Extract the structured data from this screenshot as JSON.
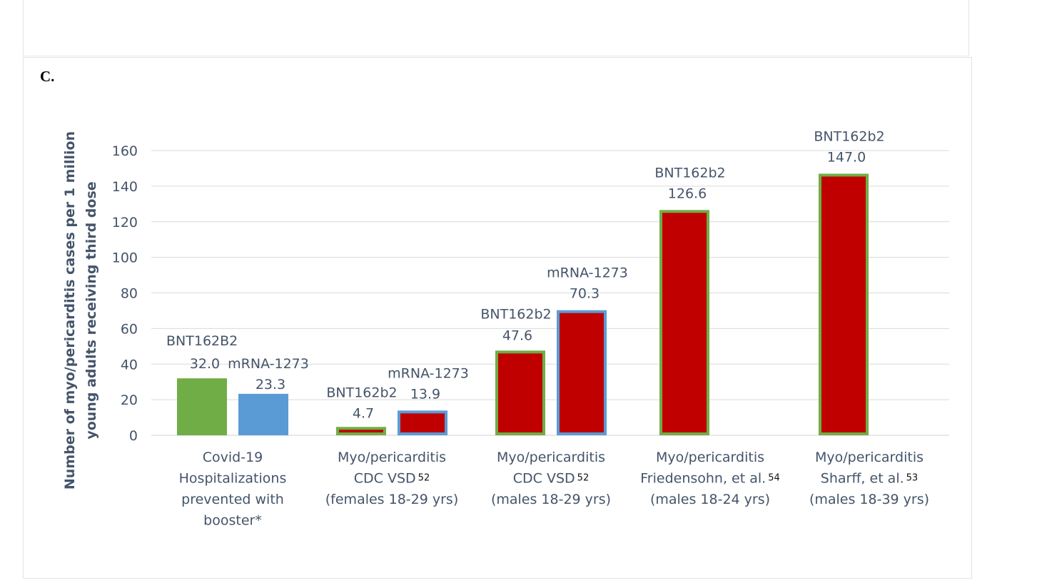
{
  "panel_label": "C.",
  "colors": {
    "green": "#70ad47",
    "blue": "#5b9bd5",
    "red": "#c00000",
    "text": "#44546a",
    "grid": "#d9d9d9"
  },
  "chart_data": {
    "type": "bar",
    "ylabel_lines": [
      "Number of myo/pericarditis cases per 1 million",
      "young adults receiving third dose"
    ],
    "ylim": [
      0,
      160
    ],
    "yticks": [
      0,
      20,
      40,
      60,
      80,
      100,
      120,
      140,
      160
    ],
    "grid": true,
    "categories": [
      {
        "lines": [
          {
            "text": "Covid-19"
          },
          {
            "text": "Hospitalizations"
          },
          {
            "text": "prevented with"
          },
          {
            "text": "booster*"
          }
        ]
      },
      {
        "lines": [
          {
            "text": "Myo/pericarditis"
          },
          {
            "text": "CDC VSD",
            "sup": "52"
          },
          {
            "text": "(females 18-29 yrs)"
          }
        ]
      },
      {
        "lines": [
          {
            "text": "Myo/pericarditis"
          },
          {
            "text": "CDC VSD",
            "sup": "52"
          },
          {
            "text": "(males 18-29 yrs)"
          }
        ]
      },
      {
        "lines": [
          {
            "text": "Myo/pericarditis"
          },
          {
            "text": "Friedensohn, et al.",
            "sup": "54"
          },
          {
            "text": "(males 18-24 yrs)"
          }
        ]
      },
      {
        "lines": [
          {
            "text": "Myo/pericarditis"
          },
          {
            "text": "Sharff, et al.",
            "sup": "53"
          },
          {
            "text": "(males 18-39 yrs)"
          }
        ]
      }
    ],
    "bars": [
      {
        "category": 0,
        "slot": 0,
        "value": 32.0,
        "value_label": "32.0",
        "name": "BNT162B2",
        "fill": "#70ad47",
        "border": "#70ad47"
      },
      {
        "category": 0,
        "slot": 1,
        "value": 23.3,
        "value_label": "23.3",
        "name": "mRNA-1273",
        "fill": "#5b9bd5",
        "border": "#5b9bd5"
      },
      {
        "category": 1,
        "slot": 0,
        "value": 4.7,
        "value_label": "4.7",
        "name": "BNT162b2",
        "fill": "#c00000",
        "border": "#70ad47"
      },
      {
        "category": 1,
        "slot": 1,
        "value": 13.9,
        "value_label": "13.9",
        "name": "mRNA-1273",
        "fill": "#c00000",
        "border": "#5b9bd5"
      },
      {
        "category": 2,
        "slot": 0,
        "value": 47.6,
        "value_label": "47.6",
        "name": "BNT162b2",
        "fill": "#c00000",
        "border": "#70ad47"
      },
      {
        "category": 2,
        "slot": 1,
        "value": 70.3,
        "value_label": "70.3",
        "name": "mRNA-1273",
        "fill": "#c00000",
        "border": "#5b9bd5"
      },
      {
        "category": 3,
        "slot": 0,
        "value": 126.6,
        "value_label": "126.6",
        "name": "BNT162b2",
        "fill": "#c00000",
        "border": "#70ad47"
      },
      {
        "category": 4,
        "slot": 0,
        "value": 147.0,
        "value_label": "147.0",
        "name": "BNT162b2",
        "fill": "#c00000",
        "border": "#70ad47"
      }
    ]
  }
}
